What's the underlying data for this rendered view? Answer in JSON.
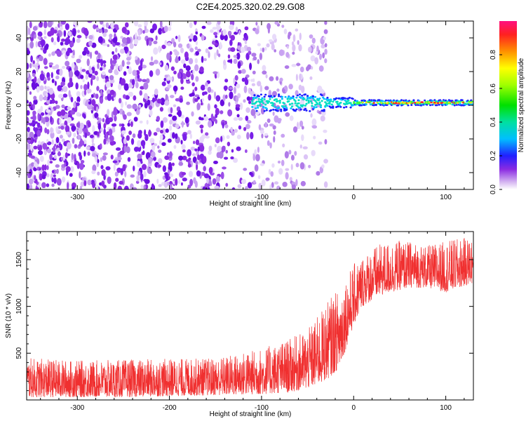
{
  "title": "C2E4.2025.320.02.29.G08",
  "chart_data": [
    {
      "type": "heatmap",
      "name": "spectrogram",
      "xlabel": "Height of straight line (km)",
      "ylabel": "Frequency (Hz)",
      "xlim": [
        -355,
        130
      ],
      "ylim": [
        -50,
        50
      ],
      "xticks": [
        -300,
        -200,
        -100,
        0,
        100
      ],
      "xtick_labels": [
        "-300",
        "-200",
        "-100",
        "0",
        "100"
      ],
      "yticks": [
        -40,
        -20,
        0,
        20,
        40
      ],
      "ytick_labels": [
        "-40",
        "-20",
        "0",
        "20",
        "40"
      ],
      "colorbar": {
        "label": "Normalized spectral amplitude",
        "range": [
          0.0,
          1.0
        ],
        "ticks": [
          0.0,
          0.2,
          0.4,
          0.6,
          0.8
        ],
        "tick_labels": [
          "0.0",
          "0.2",
          "0.4",
          "0.6",
          "0.8"
        ]
      },
      "noise_region_x": [
        -355,
        -30
      ],
      "signal_center_freq": 1.5,
      "signal_start_x": -110
    },
    {
      "type": "line",
      "name": "snr",
      "xlabel": "Height of straight line (km)",
      "ylabel": "SNR (10 * v/v)",
      "xlim": [
        -355,
        130
      ],
      "ylim": [
        0,
        1800
      ],
      "xticks": [
        -300,
        -200,
        -100,
        0,
        100
      ],
      "xtick_labels": [
        "-300",
        "-200",
        "-100",
        "0",
        "100"
      ],
      "yticks": [
        500,
        1000,
        1500
      ],
      "ytick_labels": [
        "500",
        "1000",
        "1500"
      ],
      "series": [
        {
          "name": "SNR",
          "color": "#f03030",
          "x": [
            -355,
            -300,
            -250,
            -200,
            -150,
            -100,
            -70,
            -50,
            -35,
            -25,
            -15,
            -10,
            0,
            10,
            25,
            40,
            60,
            80,
            100,
            130
          ],
          "y_low": [
            30,
            30,
            30,
            40,
            50,
            60,
            80,
            120,
            180,
            250,
            350,
            500,
            800,
            1000,
            1100,
            1150,
            1200,
            1200,
            1150,
            1250
          ],
          "y_high": [
            450,
            420,
            430,
            440,
            450,
            550,
            650,
            750,
            950,
            1100,
            1200,
            1300,
            1450,
            1550,
            1650,
            1700,
            1700,
            1650,
            1700,
            1750
          ]
        }
      ]
    }
  ]
}
